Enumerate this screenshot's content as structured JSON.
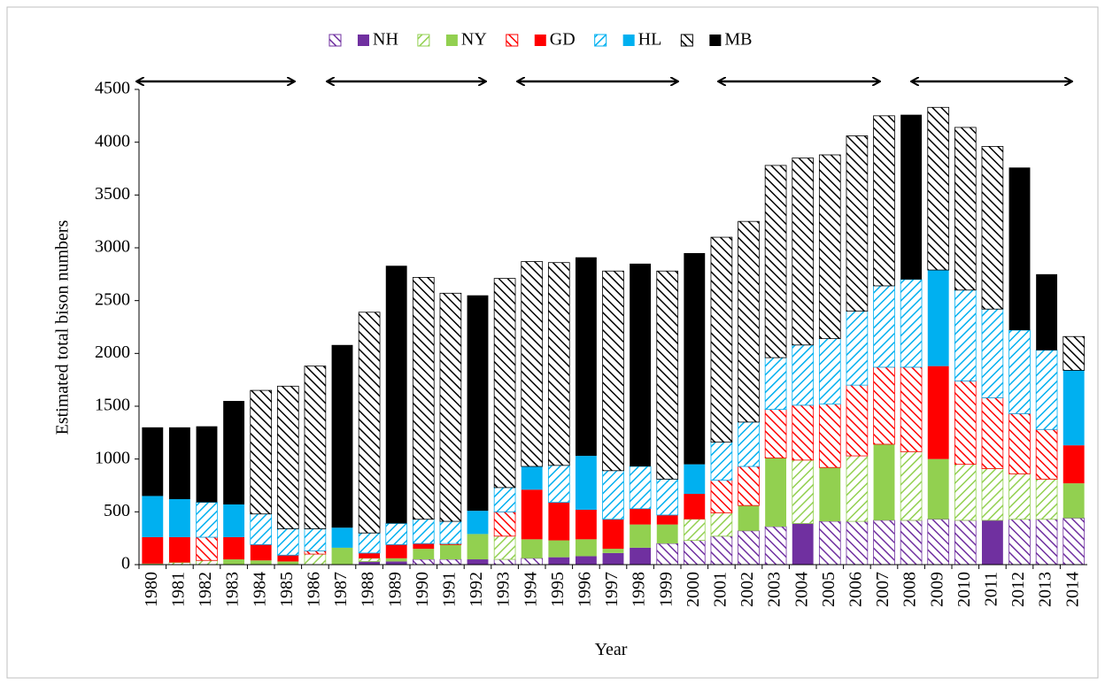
{
  "chart_data": {
    "type": "stacked_bar",
    "xlabel": "Year",
    "ylabel": "Estimated total bison numbers",
    "categories": [
      "1980",
      "1981",
      "1982",
      "1983",
      "1984",
      "1985",
      "1986",
      "1987",
      "1988",
      "1989",
      "1990",
      "1991",
      "1992",
      "1993",
      "1994",
      "1995",
      "1996",
      "1997",
      "1998",
      "1999",
      "2000",
      "2001",
      "2002",
      "2003",
      "2004",
      "2005",
      "2006",
      "2007",
      "2008",
      "2009",
      "2010",
      "2011",
      "2012",
      "2013",
      "2014"
    ],
    "series": [
      {
        "name": "NH",
        "color": "#7030a0",
        "values": [
          0,
          0,
          0,
          0,
          0,
          0,
          0,
          0,
          30,
          30,
          50,
          50,
          50,
          50,
          60,
          70,
          80,
          110,
          160,
          200,
          230,
          270,
          320,
          360,
          390,
          410,
          410,
          420,
          420,
          430,
          420,
          420,
          430,
          430,
          440
        ],
        "hatched": [
          false,
          false,
          false,
          false,
          false,
          false,
          false,
          false,
          false,
          false,
          true,
          true,
          false,
          true,
          true,
          false,
          false,
          false,
          false,
          true,
          true,
          true,
          true,
          true,
          false,
          true,
          true,
          true,
          true,
          true,
          true,
          false,
          true,
          true,
          true
        ]
      },
      {
        "name": "NY",
        "color": "#92d050",
        "values": [
          10,
          20,
          40,
          50,
          40,
          30,
          100,
          160,
          30,
          30,
          100,
          140,
          240,
          220,
          180,
          160,
          160,
          40,
          220,
          180,
          200,
          220,
          240,
          650,
          600,
          510,
          620,
          720,
          650,
          570,
          530,
          490,
          430,
          380,
          330
        ],
        "hatched": [
          false,
          true,
          true,
          false,
          false,
          false,
          true,
          false,
          true,
          false,
          false,
          false,
          false,
          true,
          false,
          false,
          false,
          false,
          false,
          false,
          true,
          true,
          false,
          false,
          true,
          false,
          true,
          false,
          true,
          false,
          true,
          true,
          true,
          true,
          false
        ]
      },
      {
        "name": "GD",
        "color": "#ff0000",
        "values": [
          250,
          240,
          220,
          210,
          150,
          60,
          30,
          0,
          50,
          130,
          50,
          10,
          0,
          230,
          470,
          360,
          280,
          280,
          150,
          90,
          240,
          310,
          370,
          460,
          520,
          600,
          670,
          730,
          800,
          880,
          790,
          670,
          570,
          470,
          360
        ],
        "hatched": [
          false,
          false,
          true,
          false,
          false,
          false,
          true,
          false,
          false,
          false,
          false,
          true,
          false,
          true,
          false,
          false,
          false,
          false,
          false,
          false,
          false,
          true,
          true,
          true,
          true,
          true,
          true,
          true,
          true,
          false,
          true,
          true,
          true,
          true,
          false
        ]
      },
      {
        "name": "HL",
        "color": "#00b0f0",
        "values": [
          390,
          360,
          330,
          310,
          290,
          250,
          210,
          190,
          190,
          200,
          230,
          210,
          220,
          230,
          220,
          350,
          510,
          460,
          400,
          340,
          280,
          360,
          420,
          490,
          570,
          620,
          700,
          770,
          830,
          910,
          860,
          840,
          790,
          750,
          710
        ],
        "hatched": [
          false,
          false,
          true,
          false,
          true,
          true,
          true,
          false,
          true,
          true,
          true,
          true,
          false,
          true,
          false,
          true,
          false,
          true,
          true,
          true,
          false,
          true,
          true,
          true,
          true,
          true,
          true,
          true,
          true,
          false,
          true,
          true,
          true,
          true,
          false
        ]
      },
      {
        "name": "MB",
        "color": "#000000",
        "values": [
          650,
          680,
          720,
          980,
          1170,
          1350,
          1540,
          1730,
          2090,
          2440,
          2290,
          2160,
          2040,
          1980,
          1940,
          1920,
          1880,
          1890,
          1920,
          1970,
          2000,
          1940,
          1900,
          1820,
          1770,
          1740,
          1660,
          1610,
          1560,
          1540,
          1540,
          1540,
          1540,
          720,
          320
        ],
        "hatched": [
          false,
          false,
          false,
          false,
          true,
          true,
          true,
          false,
          true,
          false,
          true,
          true,
          false,
          true,
          true,
          true,
          false,
          true,
          false,
          true,
          false,
          true,
          true,
          true,
          true,
          true,
          true,
          true,
          false,
          true,
          true,
          true,
          false,
          false,
          true
        ]
      }
    ],
    "ylim": [
      0,
      4500
    ],
    "yticks": [
      0,
      500,
      1000,
      1500,
      2000,
      2500,
      3000,
      3500,
      4000,
      4500
    ]
  }
}
